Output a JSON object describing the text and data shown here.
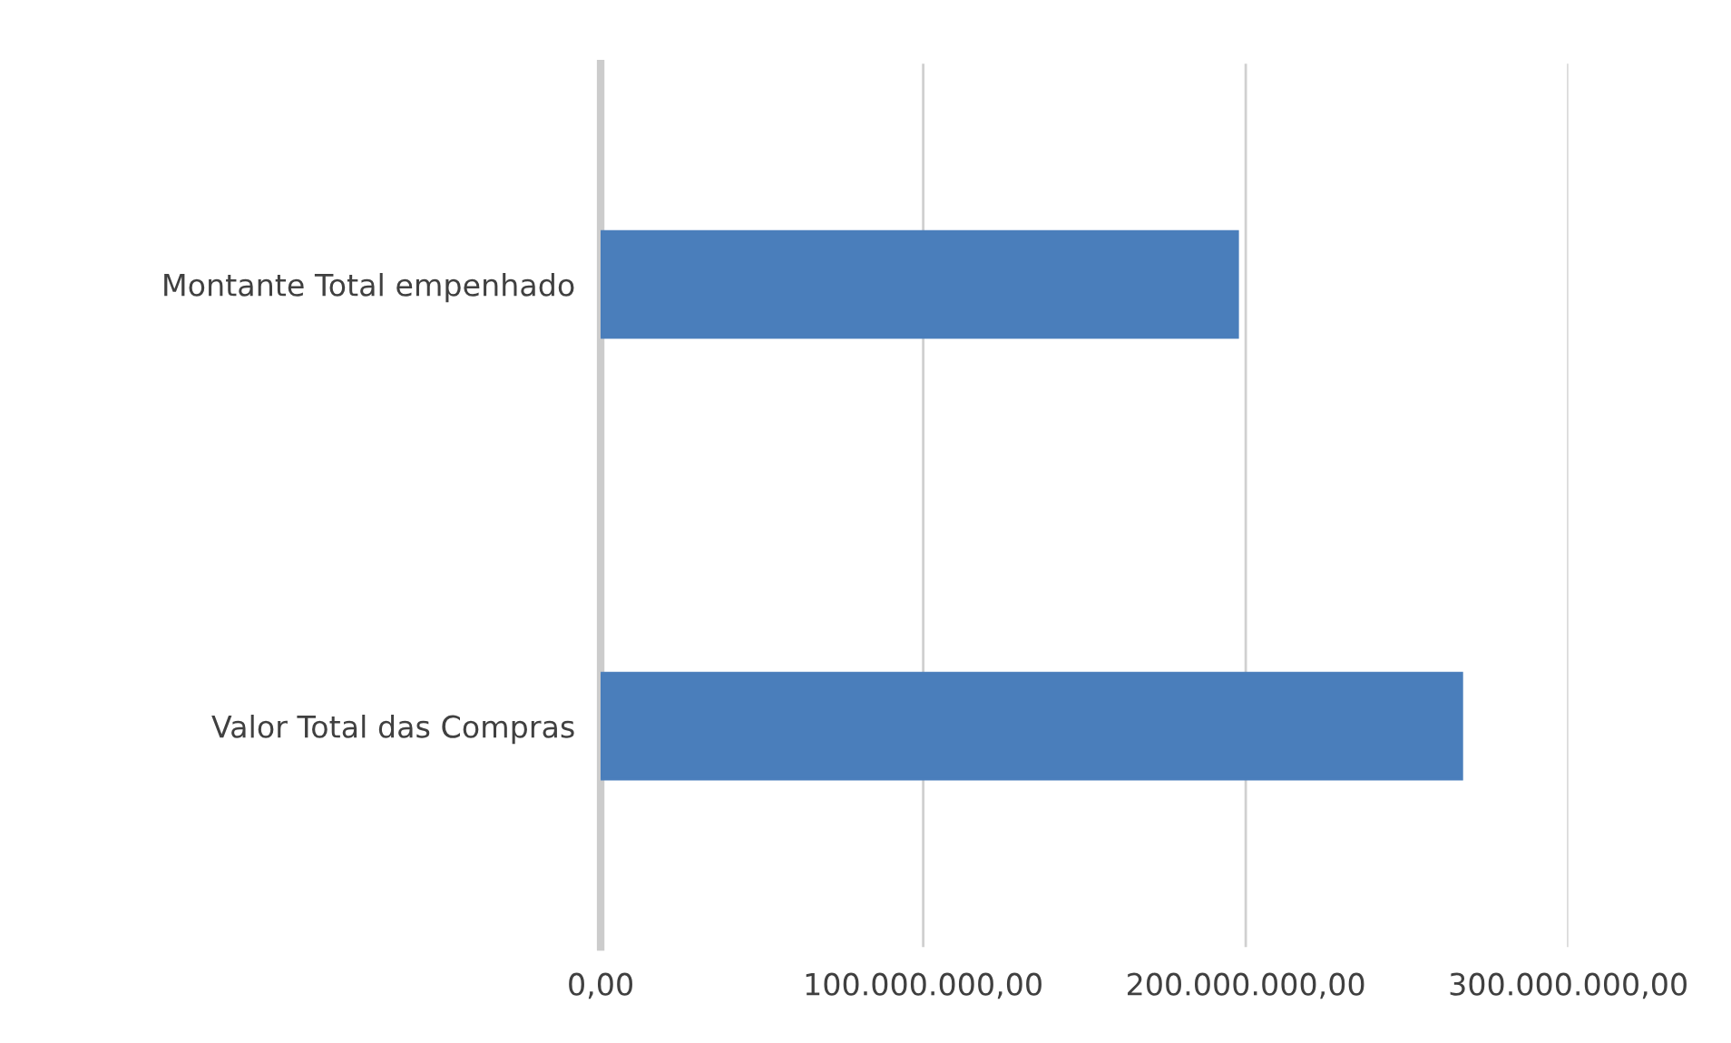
{
  "chart_data": {
    "type": "bar",
    "orientation": "horizontal",
    "categories": [
      "Montante Total empenhado",
      "Valor Total das Compras"
    ],
    "values": [
      197500000,
      267000000
    ],
    "color": "#4a7ebb",
    "xlim": [
      0,
      300000000
    ],
    "xticks": [
      {
        "value": 0,
        "label": "0,00"
      },
      {
        "value": 100000000,
        "label": "100.000.000,00"
      },
      {
        "value": 200000000,
        "label": "200.000.000,00"
      },
      {
        "value": 300000000,
        "label": "300.000.000,00"
      }
    ],
    "grid": "x"
  }
}
